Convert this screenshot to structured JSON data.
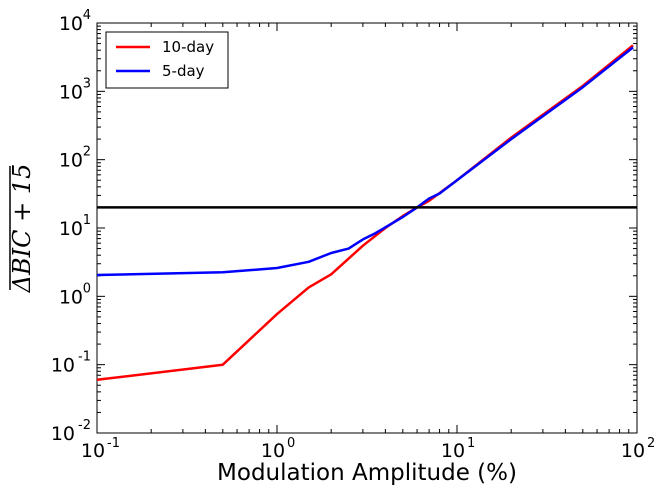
{
  "chart_data": {
    "type": "line",
    "title": "",
    "xlabel": "Modulation Amplitude (%)",
    "ylabel": "ΔBIC + 15",
    "xscale": "log",
    "yscale": "log",
    "xlim": [
      0.1,
      100
    ],
    "ylim": [
      0.01,
      10000
    ],
    "x_ticks": [
      {
        "base": "10",
        "exp": "-1"
      },
      {
        "base": "10",
        "exp": "0"
      },
      {
        "base": "10",
        "exp": "1"
      },
      {
        "base": "10",
        "exp": "2"
      }
    ],
    "y_ticks": [
      {
        "base": "10",
        "exp": "-2"
      },
      {
        "base": "10",
        "exp": "-1"
      },
      {
        "base": "10",
        "exp": "0"
      },
      {
        "base": "10",
        "exp": "1"
      },
      {
        "base": "10",
        "exp": "2"
      },
      {
        "base": "10",
        "exp": "3"
      },
      {
        "base": "10",
        "exp": "4"
      }
    ],
    "grid": false,
    "legend_position": "top-left",
    "hline": {
      "y": 20,
      "color": "#000000"
    },
    "series": [
      {
        "name": "10-day",
        "color": "#ff0000",
        "x": [
          0.1,
          0.5,
          1.0,
          1.5,
          2.0,
          3.0,
          4.0,
          5.0,
          6.0,
          7.0,
          10,
          20,
          50,
          95
        ],
        "y": [
          0.06,
          0.1,
          0.55,
          1.35,
          2.1,
          5.5,
          10,
          15,
          20,
          25,
          50,
          210,
          1200,
          4700
        ]
      },
      {
        "name": "5-day",
        "color": "#0000ff",
        "x": [
          0.1,
          0.5,
          1.0,
          1.5,
          2.0,
          2.5,
          3.0,
          3.5,
          5.0,
          6.0,
          7.0,
          8.0,
          10,
          20,
          50,
          95
        ],
        "y": [
          2.05,
          2.25,
          2.6,
          3.2,
          4.3,
          5.0,
          6.8,
          8.3,
          14.5,
          20,
          27,
          32,
          50,
          200,
          1150,
          4400
        ]
      }
    ]
  }
}
